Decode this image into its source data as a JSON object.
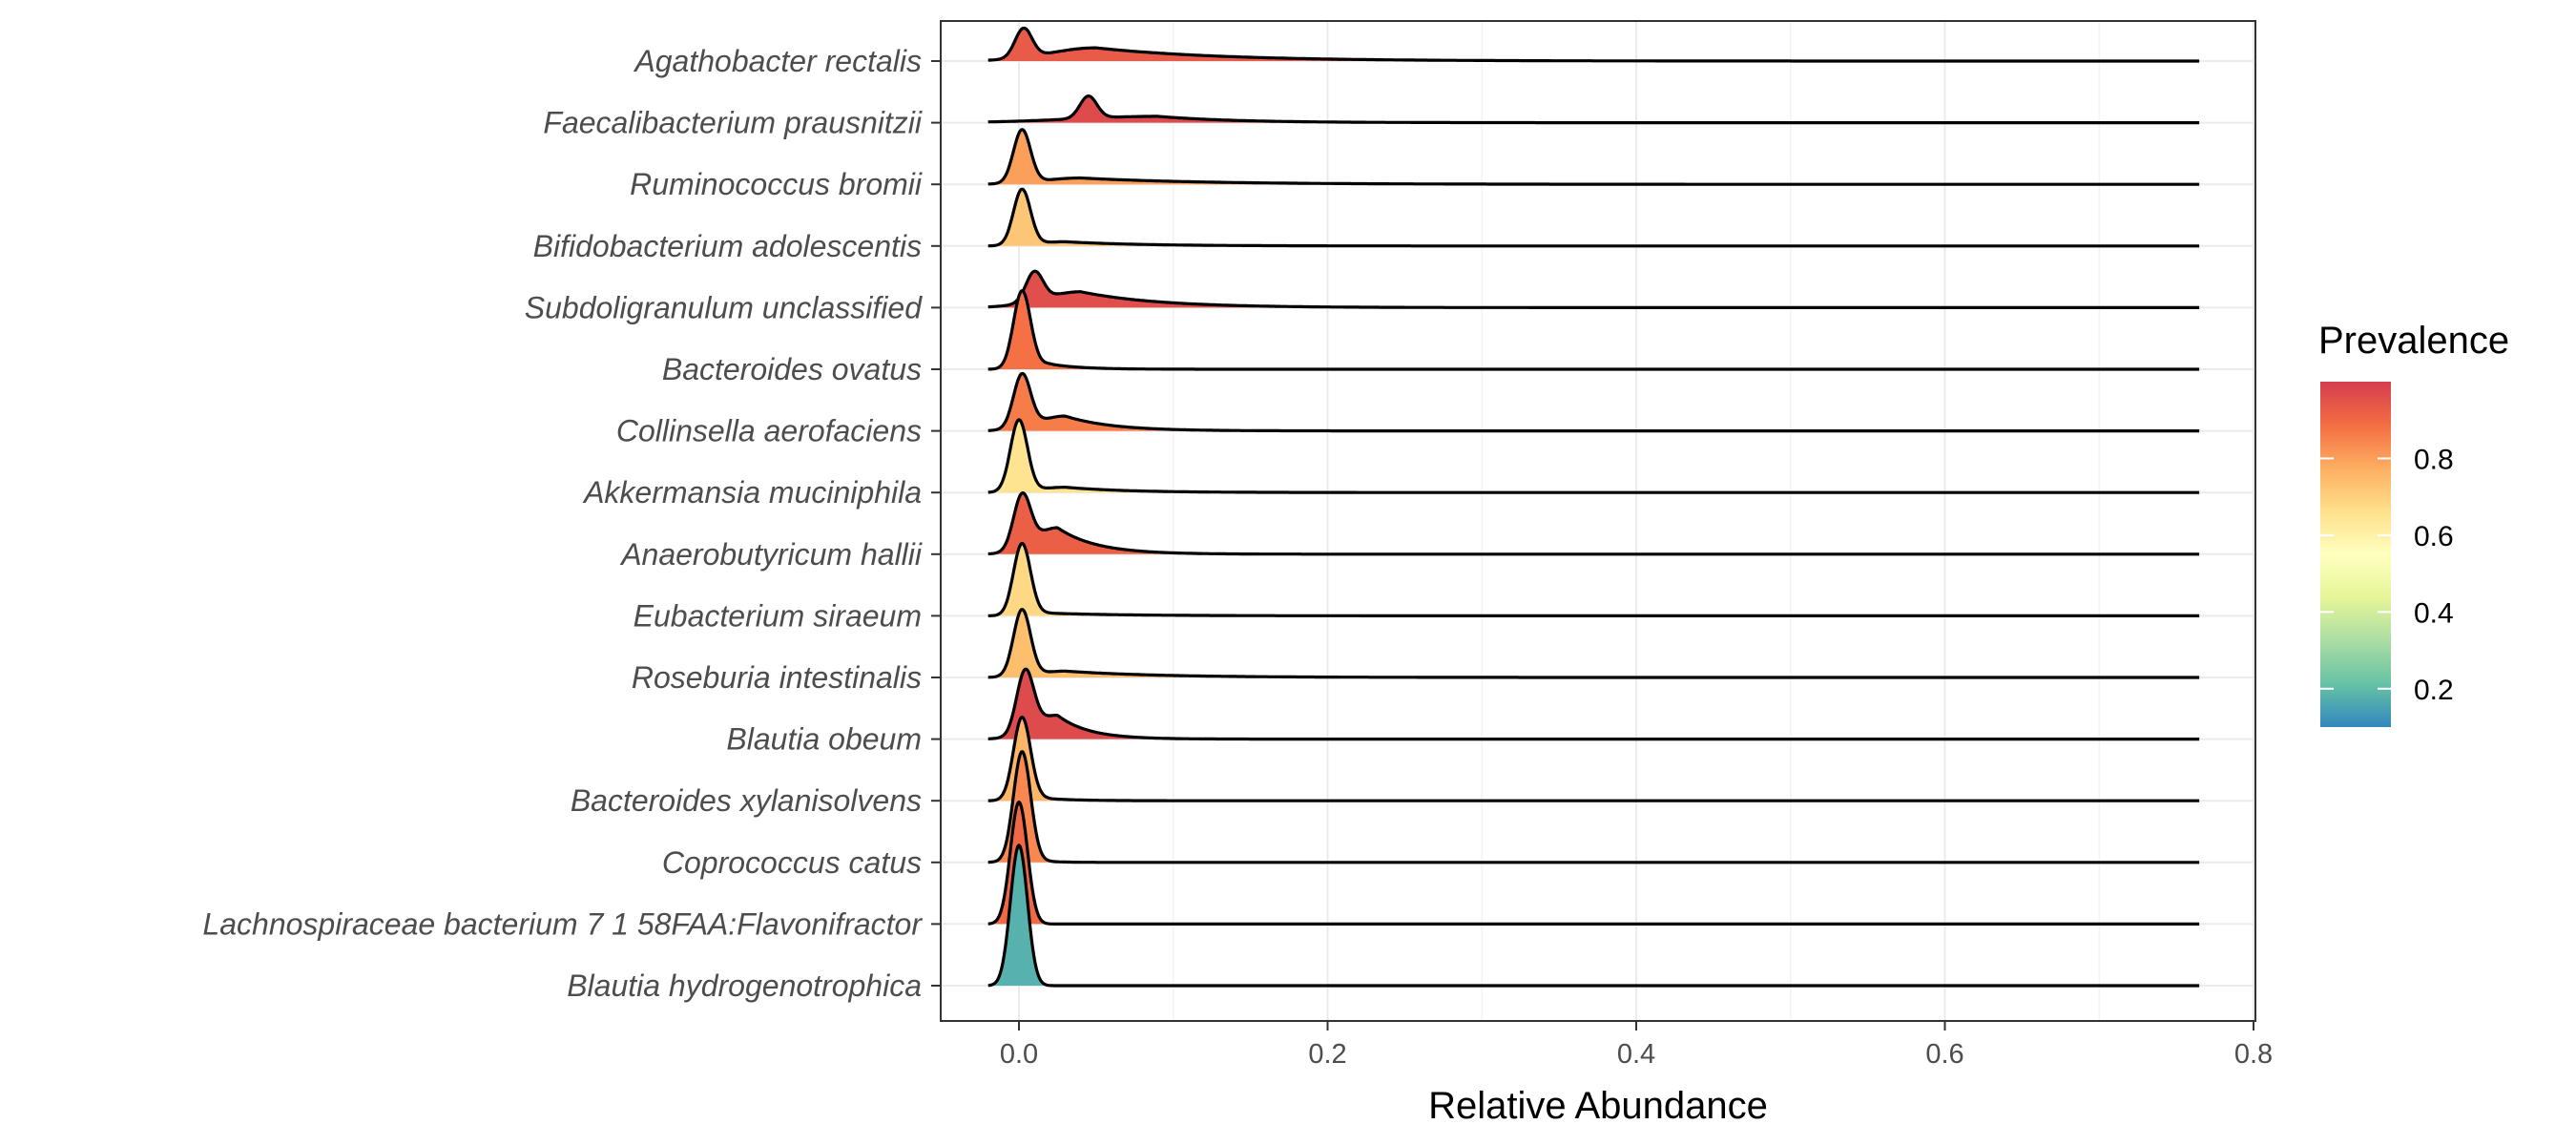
{
  "chart_data": {
    "type": "ridgeline",
    "xlabel": "Relative Abundance",
    "xlim": [
      -0.05,
      0.8
    ],
    "xticks": [
      0.0,
      0.2,
      0.4,
      0.6,
      0.8
    ],
    "xtick_labels": [
      "0.0",
      "0.2",
      "0.4",
      "0.6",
      "0.8"
    ],
    "x_max_data": 0.765,
    "grid": true,
    "legend": {
      "title": "Prevalence",
      "position": "right",
      "range": [
        0.1,
        1.0
      ],
      "ticks": [
        0.8,
        0.6,
        0.4,
        0.2
      ],
      "tick_labels": [
        "0.8",
        "0.6",
        "0.4",
        "0.2"
      ],
      "colors": [
        "#d53e4f",
        "#f46d43",
        "#fdae61",
        "#fee08b",
        "#ffffbf",
        "#e6f598",
        "#abdda4",
        "#66c2a5",
        "#3288bd"
      ]
    },
    "series": [
      {
        "name": "Agathobacter rectalis",
        "prevalence": 0.93,
        "peak_x": 0.003,
        "peak_h": 0.55,
        "tail_x": 0.05,
        "tail_h": 0.25,
        "tail_decay": 0.08
      },
      {
        "name": "Faecalibacterium prausnitzii",
        "prevalence": 0.97,
        "peak_x": 0.045,
        "peak_h": 0.42,
        "tail_x": 0.09,
        "tail_h": 0.12,
        "tail_decay": 0.05
      },
      {
        "name": "Ruminococcus bromii",
        "prevalence": 0.8,
        "peak_x": 0.002,
        "peak_h": 1.0,
        "tail_x": 0.04,
        "tail_h": 0.12,
        "tail_decay": 0.08
      },
      {
        "name": "Bifidobacterium adolescentis",
        "prevalence": 0.72,
        "peak_x": 0.002,
        "peak_h": 1.05,
        "tail_x": 0.03,
        "tail_h": 0.08,
        "tail_decay": 0.05
      },
      {
        "name": "Subdoligranulum unclassified",
        "prevalence": 0.96,
        "peak_x": 0.01,
        "peak_h": 0.55,
        "tail_x": 0.04,
        "tail_h": 0.3,
        "tail_decay": 0.05
      },
      {
        "name": "Bacteroides ovatus",
        "prevalence": 0.88,
        "peak_x": 0.002,
        "peak_h": 1.45,
        "tail_x": 0.02,
        "tail_h": 0.1,
        "tail_decay": 0.02
      },
      {
        "name": "Collinsella aerofaciens",
        "prevalence": 0.86,
        "peak_x": 0.002,
        "peak_h": 1.0,
        "tail_x": 0.03,
        "tail_h": 0.28,
        "tail_decay": 0.03
      },
      {
        "name": "Akkermansia muciniphila",
        "prevalence": 0.65,
        "peak_x": 0.0,
        "peak_h": 1.35,
        "tail_x": 0.03,
        "tail_h": 0.1,
        "tail_decay": 0.04
      },
      {
        "name": "Anaerobutyricum hallii",
        "prevalence": 0.92,
        "peak_x": 0.002,
        "peak_h": 1.0,
        "tail_x": 0.025,
        "tail_h": 0.5,
        "tail_decay": 0.025
      },
      {
        "name": "Eubacterium siraeum",
        "prevalence": 0.68,
        "peak_x": 0.002,
        "peak_h": 1.35,
        "tail_x": 0.02,
        "tail_h": 0.05,
        "tail_decay": 0.05
      },
      {
        "name": "Roseburia intestinalis",
        "prevalence": 0.74,
        "peak_x": 0.002,
        "peak_h": 1.25,
        "tail_x": 0.03,
        "tail_h": 0.12,
        "tail_decay": 0.06
      },
      {
        "name": "Blautia obeum",
        "prevalence": 0.97,
        "peak_x": 0.004,
        "peak_h": 1.15,
        "tail_x": 0.025,
        "tail_h": 0.45,
        "tail_decay": 0.02
      },
      {
        "name": "Bacteroides xylanisolvens",
        "prevalence": 0.76,
        "peak_x": 0.002,
        "peak_h": 1.55,
        "tail_x": 0.015,
        "tail_h": 0.05,
        "tail_decay": 0.02
      },
      {
        "name": "Coprococcus catus",
        "prevalence": 0.84,
        "peak_x": 0.002,
        "peak_h": 2.05,
        "tail_x": 0.01,
        "tail_h": 0.05,
        "tail_decay": 0.01
      },
      {
        "name": "Lachnospiraceae bacterium 7 1 58FAA:Flavonifractor",
        "prevalence": 0.9,
        "peak_x": 0.0,
        "peak_h": 2.3,
        "tail_x": 0.008,
        "tail_h": 0.0,
        "tail_decay": 0.01
      },
      {
        "name": "Blautia hydrogenotrophica",
        "prevalence": 0.18,
        "peak_x": 0.0,
        "peak_h": 2.65,
        "tail_x": 0.008,
        "tail_h": 0.0,
        "tail_decay": 0.01
      }
    ]
  }
}
